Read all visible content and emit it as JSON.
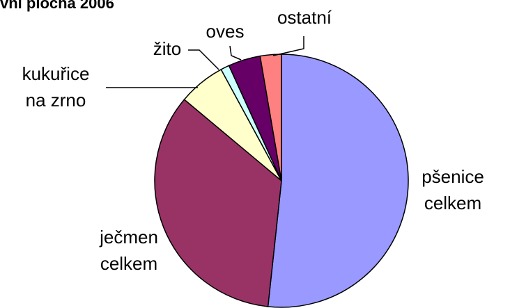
{
  "chart_data": {
    "type": "pie",
    "title": "vní plocha 2006",
    "categories": [
      "pšenice\ncelkem",
      "ječmen\ncelkem",
      "kukuřice\nna zrno",
      "žito",
      "oves",
      "ostatní"
    ],
    "values": [
      51.7,
      34.4,
      6,
      1.1,
      4.1,
      2.7
    ],
    "colors": [
      "#9999ff",
      "#993366",
      "#ffffcc",
      "#ccffff",
      "#660066",
      "#ff8080"
    ]
  }
}
